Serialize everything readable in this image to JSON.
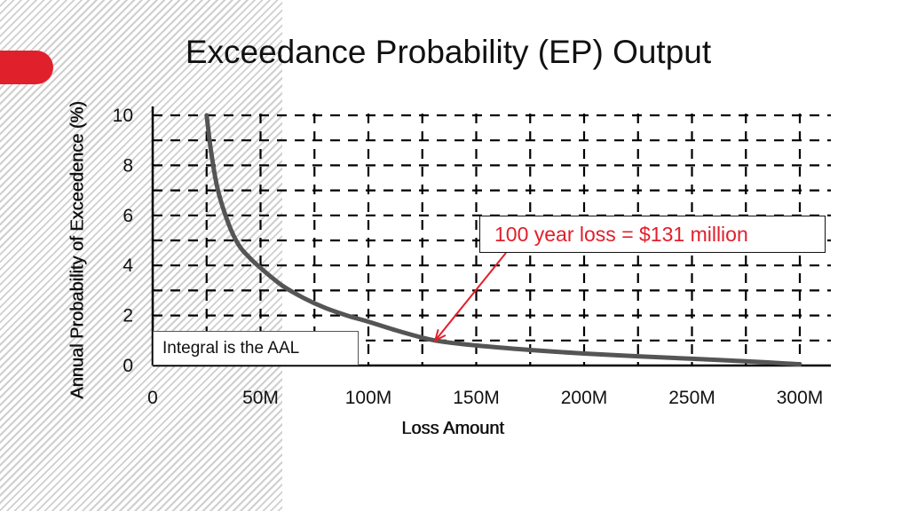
{
  "chart_data": {
    "type": "line",
    "title": "Exceedance Probability (EP) Output",
    "xlabel": "Loss Amount",
    "ylabel": "Annual Probability of Exceedence (%)",
    "xlim": [
      0,
      315
    ],
    "ylim": [
      0,
      10.2
    ],
    "x_ticks": [
      0,
      50,
      100,
      150,
      200,
      250,
      300
    ],
    "x_tick_labels": [
      "0",
      "50M",
      "100M",
      "150M",
      "200M",
      "250M",
      "300M"
    ],
    "y_ticks": [
      0,
      2,
      4,
      6,
      8,
      10
    ],
    "y_tick_labels": [
      "0",
      "2",
      "4",
      "6",
      "8",
      "10"
    ],
    "grid": true,
    "grid_x_step": 25,
    "grid_y_step": 1,
    "series": [
      {
        "name": "EP curve",
        "color": "#555555",
        "x": [
          25,
          27,
          30,
          35,
          40,
          45,
          50,
          60,
          70,
          80,
          90,
          100,
          115,
          131,
          150,
          175,
          200,
          225,
          250,
          275,
          300
        ],
        "y": [
          10,
          8.6,
          7.1,
          5.7,
          4.8,
          4.3,
          3.9,
          3.2,
          2.7,
          2.3,
          2.0,
          1.75,
          1.35,
          1.0,
          0.8,
          0.62,
          0.48,
          0.37,
          0.27,
          0.17,
          0.05
        ]
      }
    ],
    "annotations": [
      {
        "text": "100 year loss = $131 million",
        "x": 131,
        "y": 1.0,
        "color": "#e0202b"
      },
      {
        "text": "Integral is the AAL"
      }
    ]
  }
}
